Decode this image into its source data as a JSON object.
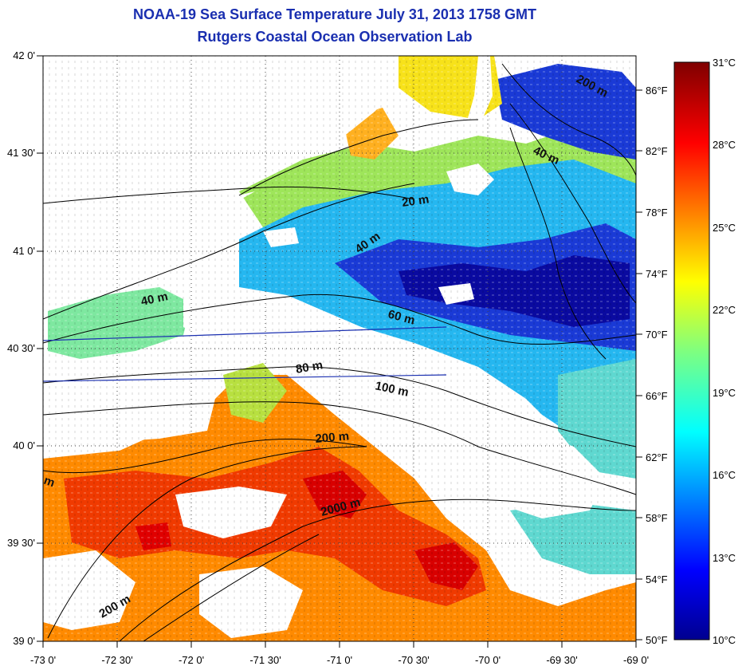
{
  "title": {
    "line1": "NOAA-19 Sea Surface Temperature July 31, 2013 1758 GMT",
    "line2": "Rutgers Coastal Ocean Observation Lab"
  },
  "map": {
    "x_ticks": [
      "-73 0'",
      "-72 30'",
      "-72 0'",
      "-71 30'",
      "-71 0'",
      "-70 30'",
      "-70 0'",
      "-69 30'",
      "-69 0'"
    ],
    "y_ticks": [
      "42 0'",
      "41 30'",
      "41 0'",
      "40 30'",
      "40 0'",
      "39 30'",
      "39 0'"
    ],
    "fahrenheit_ticks": [
      "86°F",
      "82°F",
      "78°F",
      "74°F",
      "70°F",
      "66°F",
      "62°F",
      "58°F",
      "54°F",
      "50°F"
    ],
    "contour_labels": [
      "200 m",
      "40 m",
      "20 m",
      "40 m",
      "40 m",
      "60 m",
      "80 m",
      "100 m",
      "200 m",
      "2000 m",
      "200 m",
      "m"
    ]
  },
  "colorbar": {
    "celsius_ticks": [
      "31°C",
      "28°C",
      "25°C",
      "22°C",
      "19°C",
      "16°C",
      "13°C",
      "10°C"
    ],
    "min": 10,
    "max": 31,
    "units": "°C"
  },
  "colors": {
    "title": "#1a2fb0",
    "cold": "#08086e",
    "warm": "#7a0000"
  }
}
